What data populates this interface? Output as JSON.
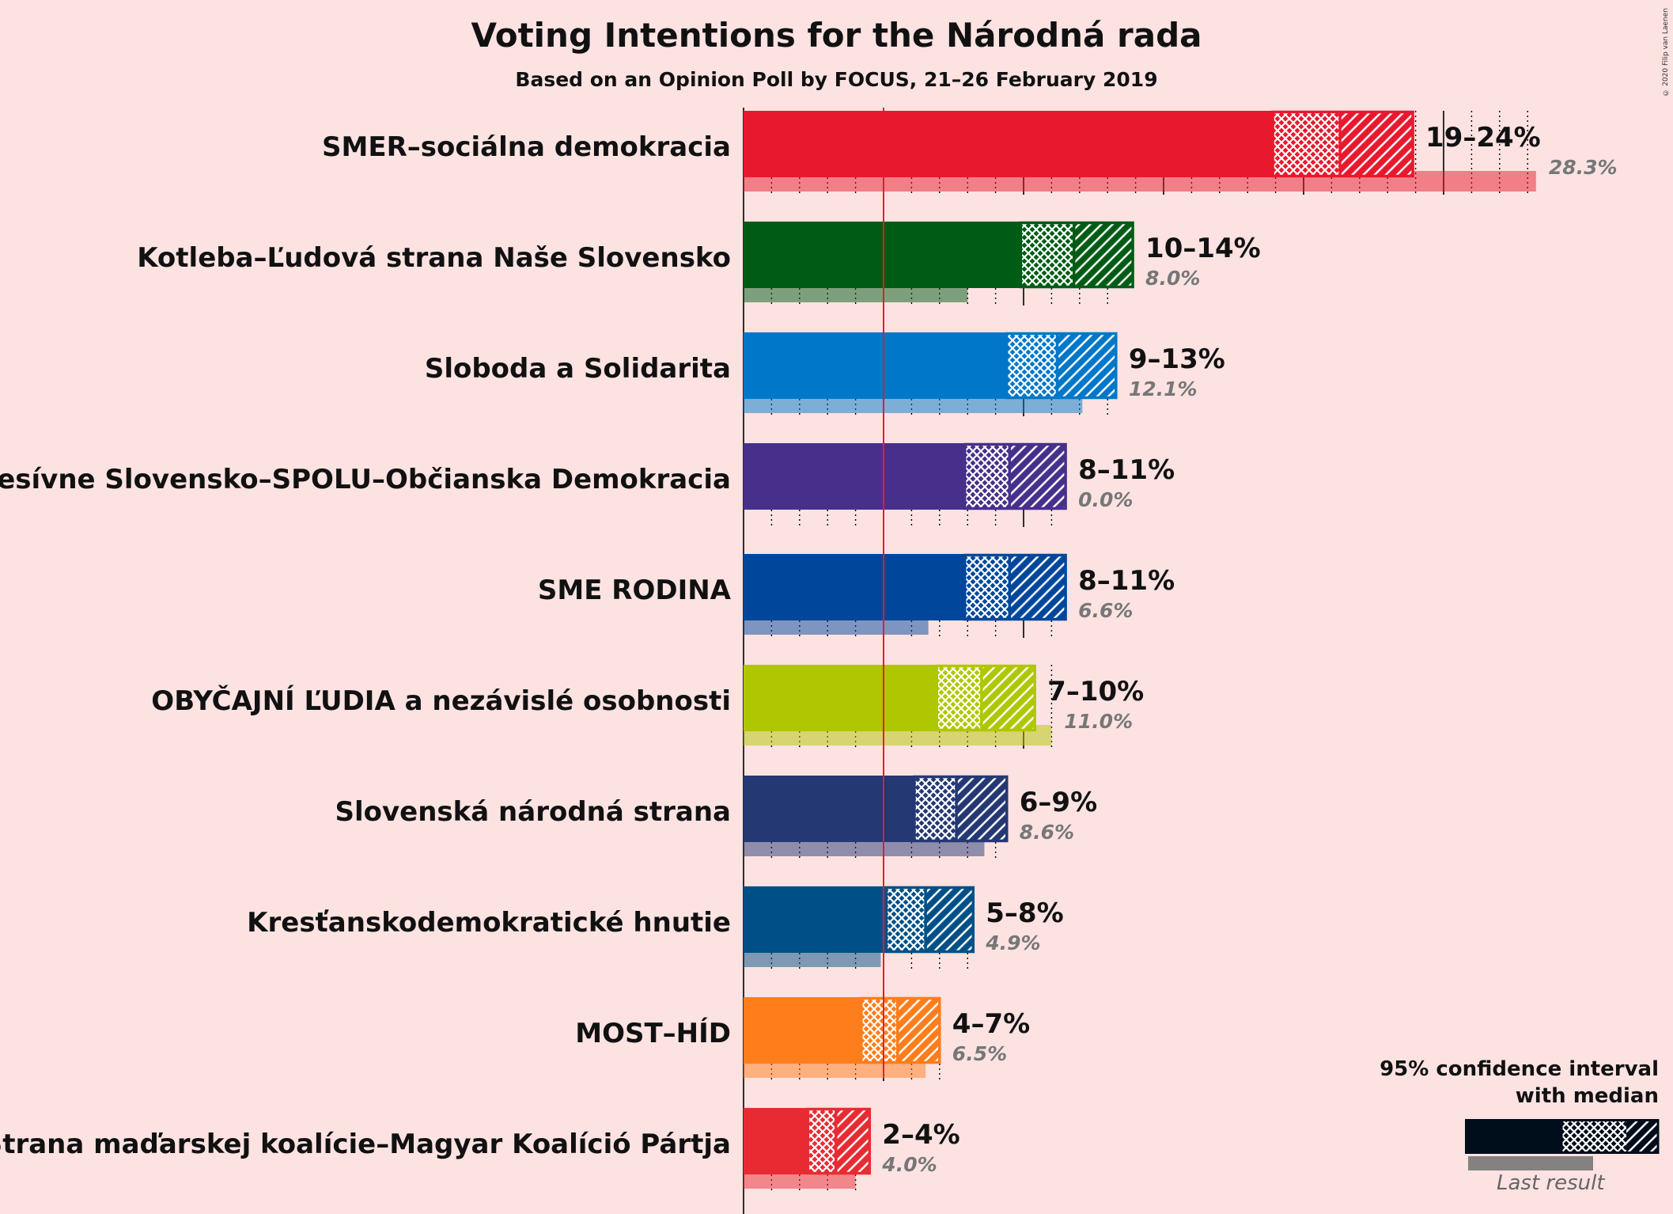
{
  "title": "Voting Intentions for the Národná rada",
  "subtitle": "Based on an Opinion Poll by FOCUS, 21–26 February 2019",
  "copyright": "© 2020 Filip van Laenen",
  "legend": {
    "title_line1": "95% confidence interval",
    "title_line2": "with median",
    "last_result_label": "Last result",
    "sample_color": "#000d1a"
  },
  "chart_data": {
    "type": "bar",
    "orientation": "horizontal",
    "x_unit": "%",
    "xlim": [
      0,
      30
    ],
    "major_gridlines": [
      0,
      5,
      10,
      15,
      20,
      25
    ],
    "threshold": 5,
    "series": [
      {
        "party": "SMER–sociálna demokracia",
        "ci_low": 18.9,
        "median": 21.3,
        "ci_high": 23.9,
        "range_label": "19–24%",
        "last_result": 28.3,
        "last_label": "28.3%",
        "color": "#e8192e"
      },
      {
        "party": "Kotleba–Ľudová strana Naše Slovensko",
        "ci_low": 9.9,
        "median": 11.8,
        "ci_high": 13.9,
        "range_label": "10–14%",
        "last_result": 8.0,
        "last_label": "8.0%",
        "color": "#005c14"
      },
      {
        "party": "Sloboda a Solidarita",
        "ci_low": 9.4,
        "median": 11.2,
        "ci_high": 13.3,
        "range_label": "9–13%",
        "last_result": 12.1,
        "last_label": "12.1%",
        "color": "#0077c8"
      },
      {
        "party": "Progresívne Slovensko–SPOLU–Občianska Demokracia",
        "ci_low": 7.9,
        "median": 9.5,
        "ci_high": 11.5,
        "range_label": "8–11%",
        "last_result": 0.0,
        "last_label": "0.0%",
        "color": "#46308c"
      },
      {
        "party": "SME RODINA",
        "ci_low": 7.9,
        "median": 9.5,
        "ci_high": 11.5,
        "range_label": "8–11%",
        "last_result": 6.6,
        "last_label": "6.6%",
        "color": "#00479c"
      },
      {
        "party": "OBYČAJNÍ ĽUDIA a nezávislé osobnosti",
        "ci_low": 6.9,
        "median": 8.5,
        "ci_high": 10.4,
        "range_label": "7–10%",
        "last_result": 11.0,
        "last_label": "11.0%",
        "color": "#afc700"
      },
      {
        "party": "Slovenská národná strana",
        "ci_low": 6.1,
        "median": 7.6,
        "ci_high": 9.4,
        "range_label": "6–9%",
        "last_result": 8.6,
        "last_label": "8.6%",
        "color": "#243874"
      },
      {
        "party": "Kresťanskodemokratické hnutie",
        "ci_low": 5.1,
        "median": 6.5,
        "ci_high": 8.2,
        "range_label": "5–8%",
        "last_result": 4.9,
        "last_label": "4.9%",
        "color": "#005087"
      },
      {
        "party": "MOST–HÍD",
        "ci_low": 4.2,
        "median": 5.5,
        "ci_high": 7.0,
        "range_label": "4–7%",
        "last_result": 6.5,
        "last_label": "6.5%",
        "color": "#ff7d1b"
      },
      {
        "party": "Strana maďarskej koalície–Magyar Koalíció Pártja",
        "ci_low": 2.3,
        "median": 3.3,
        "ci_high": 4.5,
        "range_label": "2–4%",
        "last_result": 4.0,
        "last_label": "4.0%",
        "color": "#e82b33"
      }
    ]
  }
}
